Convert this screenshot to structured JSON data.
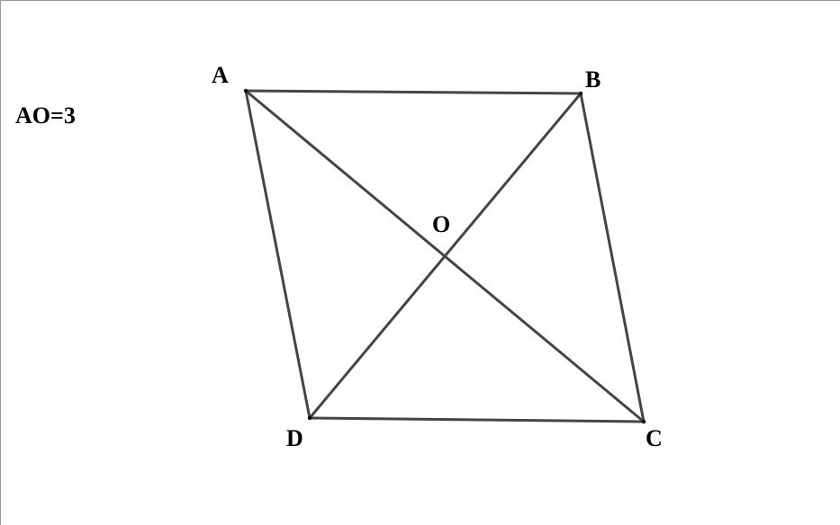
{
  "figure": {
    "shape": "parallelogram",
    "vertices": [
      "A",
      "B",
      "C",
      "D"
    ],
    "center": "O",
    "edge_color": "#454545",
    "segments": [
      [
        "A",
        "B"
      ],
      [
        "B",
        "C"
      ],
      [
        "C",
        "D"
      ],
      [
        "D",
        "A"
      ],
      [
        "A",
        "C"
      ],
      [
        "B",
        "D"
      ]
    ]
  },
  "labels": {
    "A": "A",
    "B": "B",
    "C": "C",
    "D": "D",
    "O": "O"
  },
  "given": {
    "text": "AO=3"
  }
}
